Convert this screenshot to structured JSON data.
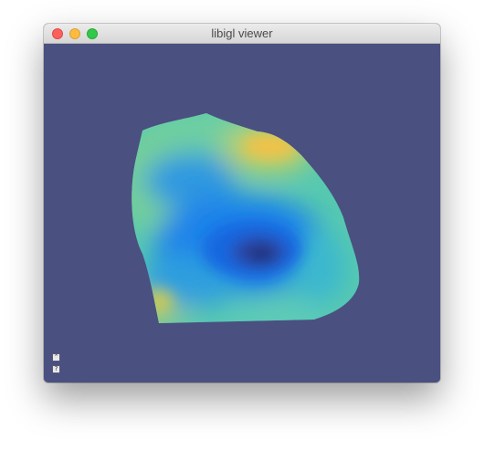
{
  "window": {
    "title": "libigl viewer"
  },
  "colors": {
    "viewport_background": "#4a5080",
    "colormap_low": "#23337a",
    "colormap_mid": "#1f7be8",
    "colormap_cyan": "#3ec3c6",
    "colormap_green": "#6ed08e",
    "colormap_high": "#f0c24a"
  },
  "toolbar": {
    "menu_icon": "collapse-menu-icon",
    "help_icon": "help-icon",
    "menu_glyph": "⌃",
    "help_glyph": "?"
  }
}
